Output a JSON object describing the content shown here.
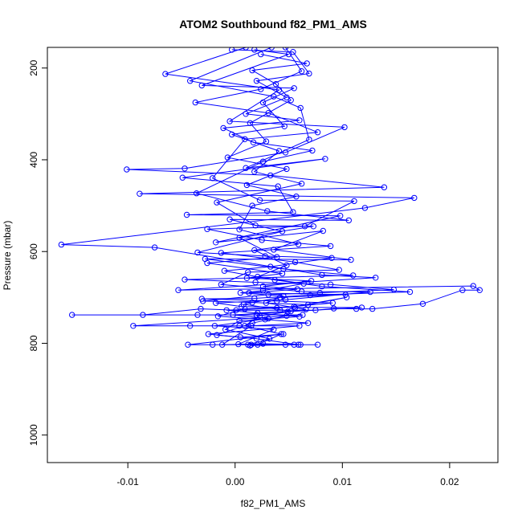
{
  "chart_data": {
    "type": "line",
    "title": "ATOM2 Southbound f82_PM1_AMS",
    "xlabel": "f82_PM1_AMS",
    "ylabel": "Pressure (mbar)",
    "xlim": [
      -0.0175,
      0.0245
    ],
    "ylim": [
      1060,
      155
    ],
    "y_reversed": true,
    "x_ticks": [
      -0.01,
      0.0,
      0.01,
      0.02
    ],
    "x_tick_labels": [
      "-0.01",
      "0.00",
      "0.01",
      "0.02"
    ],
    "y_ticks": [
      200,
      400,
      600,
      800,
      1000
    ],
    "y_tick_labels": [
      "200",
      "400",
      "600",
      "800",
      "1000"
    ],
    "grid": false,
    "legend": "none",
    "series": [
      {
        "color": "#0000ff",
        "marker": "open-circle",
        "points": [
          [
            0.001,
            155
          ],
          [
            -0.0065,
            213
          ],
          [
            0.0041,
            248
          ],
          [
            -0.0005,
            316
          ],
          [
            0.0102,
            329
          ],
          [
            0.0047,
            384
          ],
          [
            -0.0047,
            419
          ],
          [
            -0.0101,
            421
          ],
          [
            0.0033,
            434
          ],
          [
            0.0139,
            460
          ],
          [
            -0.0089,
            474
          ],
          [
            0.0167,
            483
          ],
          [
            0.0121,
            505
          ],
          [
            -0.0162,
            585
          ],
          [
            -0.0075,
            591
          ],
          [
            0.0081,
            651
          ],
          [
            0.0131,
            657
          ],
          [
            -0.0053,
            684
          ],
          [
            0.0222,
            675
          ],
          [
            0.0228,
            684
          ],
          [
            0.0212,
            684
          ],
          [
            0.0175,
            714
          ],
          [
            0.0128,
            725
          ],
          [
            0.0113,
            725
          ],
          [
            0.0092,
            724
          ],
          [
            0.0075,
            728
          ],
          [
            0.0042,
            728
          ],
          [
            0.0001,
            728
          ],
          [
            -0.0032,
            725
          ],
          [
            -0.0086,
            738
          ],
          [
            -0.0152,
            738
          ],
          [
            -0.0035,
            738
          ],
          [
            0.002,
            738
          ],
          [
            0.0063,
            738
          ],
          [
            -0.0095,
            762
          ],
          [
            -0.0042,
            762
          ],
          [
            0.0004,
            762
          ],
          [
            0.006,
            762
          ],
          [
            -0.0025,
            780
          ],
          [
            0.0005,
            787
          ],
          [
            0.0045,
            780
          ],
          [
            -0.0044,
            803
          ],
          [
            -0.0021,
            803
          ],
          [
            0.0015,
            803
          ],
          [
            0.0055,
            803
          ],
          [
            0.0077,
            803
          ]
        ]
      },
      {
        "color": "#0000ff",
        "marker": "open-circle",
        "points": [
          [
            0.0034,
            155
          ],
          [
            -0.0042,
            228
          ],
          [
            0.0036,
            262
          ],
          [
            0.0061,
            287
          ],
          [
            0.0069,
            356
          ],
          [
            0.001,
            418
          ],
          [
            0.0084,
            398
          ],
          [
            -0.0049,
            439
          ],
          [
            0.004,
            458
          ],
          [
            0.0054,
            514
          ],
          [
            -0.0045,
            520
          ],
          [
            0.0098,
            522
          ],
          [
            -0.0018,
            580
          ],
          [
            0.0082,
            555
          ],
          [
            0.0036,
            596
          ],
          [
            0.0108,
            618
          ],
          [
            -0.0028,
            616
          ],
          [
            0.0045,
            638
          ],
          [
            0.011,
            652
          ],
          [
            -0.0047,
            661
          ],
          [
            0.0019,
            667
          ],
          [
            0.0089,
            672
          ],
          [
            0.0148,
            683
          ],
          [
            0.0079,
            690
          ],
          [
            0.0031,
            694
          ],
          [
            -0.003,
            708
          ],
          [
            0.0016,
            711
          ],
          [
            0.0068,
            716
          ],
          [
            0.0104,
            700
          ],
          [
            0.0055,
            720
          ],
          [
            0.0009,
            725
          ],
          [
            -0.0016,
            741
          ],
          [
            0.0028,
            748
          ],
          [
            0.0068,
            756
          ],
          [
            0.0015,
            762
          ],
          [
            -0.0012,
            803
          ],
          [
            0.0026,
            801
          ],
          [
            0.0061,
            803
          ]
        ]
      },
      {
        "color": "#0000ff",
        "marker": "open-circle",
        "points": [
          [
            0.0047,
            155
          ],
          [
            0.0062,
            207
          ],
          [
            0.0024,
            246
          ],
          [
            -0.0037,
            275
          ],
          [
            0.0031,
            298
          ],
          [
            0.0077,
            340
          ],
          [
            0.0009,
            355
          ],
          [
            -0.0021,
            440
          ],
          [
            0.0023,
            488
          ],
          [
            0.0111,
            490
          ],
          [
            0.0065,
            545
          ],
          [
            -0.0026,
            551
          ],
          [
            0.0025,
            575
          ],
          [
            0.0089,
            588
          ],
          [
            -0.0013,
            603
          ],
          [
            0.0056,
            623
          ],
          [
            0.0097,
            640
          ],
          [
            0.0012,
            645
          ],
          [
            -0.0013,
            672
          ],
          [
            0.0062,
            687
          ],
          [
            0.0126,
            688
          ],
          [
            0.0047,
            705
          ],
          [
            -0.0018,
            712
          ],
          [
            0.0006,
            720
          ],
          [
            0.0056,
            722
          ],
          [
            0.0118,
            722
          ],
          [
            0.0049,
            731
          ],
          [
            -0.0002,
            738
          ],
          [
            0.0031,
            746
          ],
          [
            -0.0019,
            762
          ],
          [
            0.0036,
            770
          ],
          [
            0.0003,
            802
          ],
          [
            0.0047,
            803
          ]
        ]
      },
      {
        "color": "#0000ff",
        "marker": "open-circle",
        "points": [
          [
            -0.0003,
            160
          ],
          [
            0.0054,
            165
          ],
          [
            0.0069,
            212
          ],
          [
            0.002,
            228
          ],
          [
            0.0048,
            264
          ],
          [
            0.001,
            300
          ],
          [
            0.006,
            314
          ],
          [
            -0.0011,
            331
          ],
          [
            0.0017,
            362
          ],
          [
            0.0072,
            380
          ],
          [
            0.0026,
            404
          ],
          [
            -0.0036,
            473
          ],
          [
            0.003,
            512
          ],
          [
            0.0106,
            532
          ],
          [
            -0.0005,
            530
          ],
          [
            0.0044,
            556
          ],
          [
            -0.0035,
            602
          ],
          [
            0.0028,
            610
          ],
          [
            0.009,
            614
          ],
          [
            0.0033,
            633
          ],
          [
            -0.001,
            642
          ],
          [
            0.0037,
            662
          ],
          [
            0.0081,
            676
          ],
          [
            0.0163,
            688
          ],
          [
            0.007,
            695
          ],
          [
            0.0018,
            702
          ],
          [
            -0.0031,
            703
          ],
          [
            0.0039,
            708
          ],
          [
            0.0091,
            712
          ],
          [
            0.0039,
            723
          ],
          [
            -0.0008,
            728
          ],
          [
            0.0048,
            740
          ],
          [
            0.0016,
            756
          ],
          [
            -0.0017,
            782
          ],
          [
            0.002,
            790
          ],
          [
            0.0059,
            803
          ],
          [
            0.0014,
            805
          ]
        ]
      },
      {
        "color": "#0000ff",
        "marker": "open-circle",
        "points": [
          [
            0.0018,
            160
          ],
          [
            0.005,
            170
          ],
          [
            -0.0031,
            238
          ],
          [
            0.0055,
            244
          ],
          [
            0.0026,
            275
          ],
          [
            0.0046,
            327
          ],
          [
            -0.0003,
            345
          ],
          [
            0.0041,
            381
          ],
          [
            0.0018,
            426
          ],
          [
            0.0062,
            452
          ],
          [
            -0.0017,
            493
          ],
          [
            0.0019,
            543
          ],
          [
            0.0073,
            545
          ],
          [
            0.0004,
            570
          ],
          [
            0.0039,
            612
          ],
          [
            -0.0026,
            625
          ],
          [
            0.0044,
            648
          ],
          [
            0.0011,
            658
          ],
          [
            0.0071,
            664
          ],
          [
            0.0026,
            676
          ],
          [
            0.0058,
            682
          ],
          [
            0.0013,
            690
          ],
          [
            0.0103,
            694
          ],
          [
            0.0042,
            700
          ],
          [
            0.0008,
            715
          ],
          [
            0.0052,
            730
          ],
          [
            0.0021,
            734
          ],
          [
            0.006,
            742
          ],
          [
            0.0004,
            751
          ],
          [
            -0.0009,
            770
          ],
          [
            0.0032,
            790
          ],
          [
            0.0012,
            803
          ]
        ]
      },
      {
        "color": "#0000ff",
        "marker": "open-circle",
        "points": [
          [
            0.0024,
            170
          ],
          [
            0.0067,
            190
          ],
          [
            0.0016,
            205
          ],
          [
            0.0038,
            235
          ],
          [
            0.0052,
            270
          ],
          [
            0.0014,
            320
          ],
          [
            0.0029,
            360
          ],
          [
            -0.0007,
            395
          ],
          [
            0.0048,
            420
          ],
          [
            0.0011,
            455
          ],
          [
            0.0057,
            480
          ],
          [
            0.0016,
            500
          ],
          [
            0.0004,
            552
          ],
          [
            0.0059,
            584
          ],
          [
            0.0018,
            597
          ],
          [
            0.0048,
            630
          ],
          [
            0.0021,
            655
          ],
          [
            0.0064,
            670
          ],
          [
            0.0026,
            685
          ],
          [
            0.0005,
            690
          ],
          [
            0.0045,
            697
          ],
          [
            0.0029,
            712
          ],
          [
            0.0066,
            726
          ],
          [
            0.0023,
            740
          ],
          [
            0.0009,
            762
          ],
          [
            0.0043,
            780
          ],
          [
            0.0021,
            803
          ]
        ]
      }
    ]
  }
}
